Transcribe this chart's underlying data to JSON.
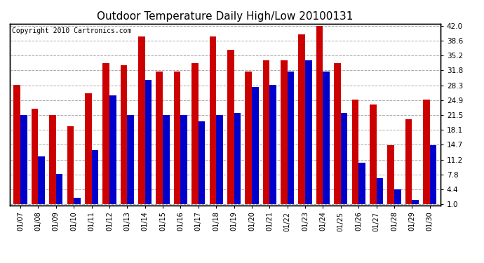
{
  "title": "Outdoor Temperature Daily High/Low 20100131",
  "copyright": "Copyright 2010 Cartronics.com",
  "dates": [
    "01/07",
    "01/08",
    "01/09",
    "01/10",
    "01/11",
    "01/12",
    "01/13",
    "01/14",
    "01/15",
    "01/16",
    "01/17",
    "01/18",
    "01/19",
    "01/20",
    "01/21",
    "01/22",
    "01/23",
    "01/24",
    "01/25",
    "01/26",
    "01/27",
    "01/28",
    "01/29",
    "01/30"
  ],
  "highs": [
    28.5,
    23.0,
    21.5,
    19.0,
    26.5,
    33.5,
    33.0,
    39.5,
    31.5,
    31.5,
    33.5,
    39.5,
    36.5,
    31.5,
    34.0,
    34.0,
    40.0,
    42.0,
    33.5,
    25.0,
    24.0,
    14.5,
    20.5,
    25.0
  ],
  "lows": [
    21.5,
    12.0,
    8.0,
    2.5,
    13.5,
    26.0,
    21.5,
    29.5,
    21.5,
    21.5,
    20.0,
    21.5,
    22.0,
    28.0,
    28.5,
    31.5,
    34.0,
    31.5,
    22.0,
    10.5,
    7.0,
    4.5,
    2.0,
    14.5
  ],
  "bar_width": 0.38,
  "high_color": "#cc0000",
  "low_color": "#0000cc",
  "bg_color": "#ffffff",
  "plot_bg_color": "#ffffff",
  "grid_color": "#aaaaaa",
  "yticks": [
    1.0,
    4.4,
    7.8,
    11.2,
    14.7,
    18.1,
    21.5,
    24.9,
    28.3,
    31.8,
    35.2,
    38.6,
    42.0
  ],
  "ymin": 1.0,
  "ymax": 42.0,
  "title_fontsize": 11,
  "copyright_fontsize": 7,
  "tick_fontsize": 7.5,
  "xtick_fontsize": 7
}
